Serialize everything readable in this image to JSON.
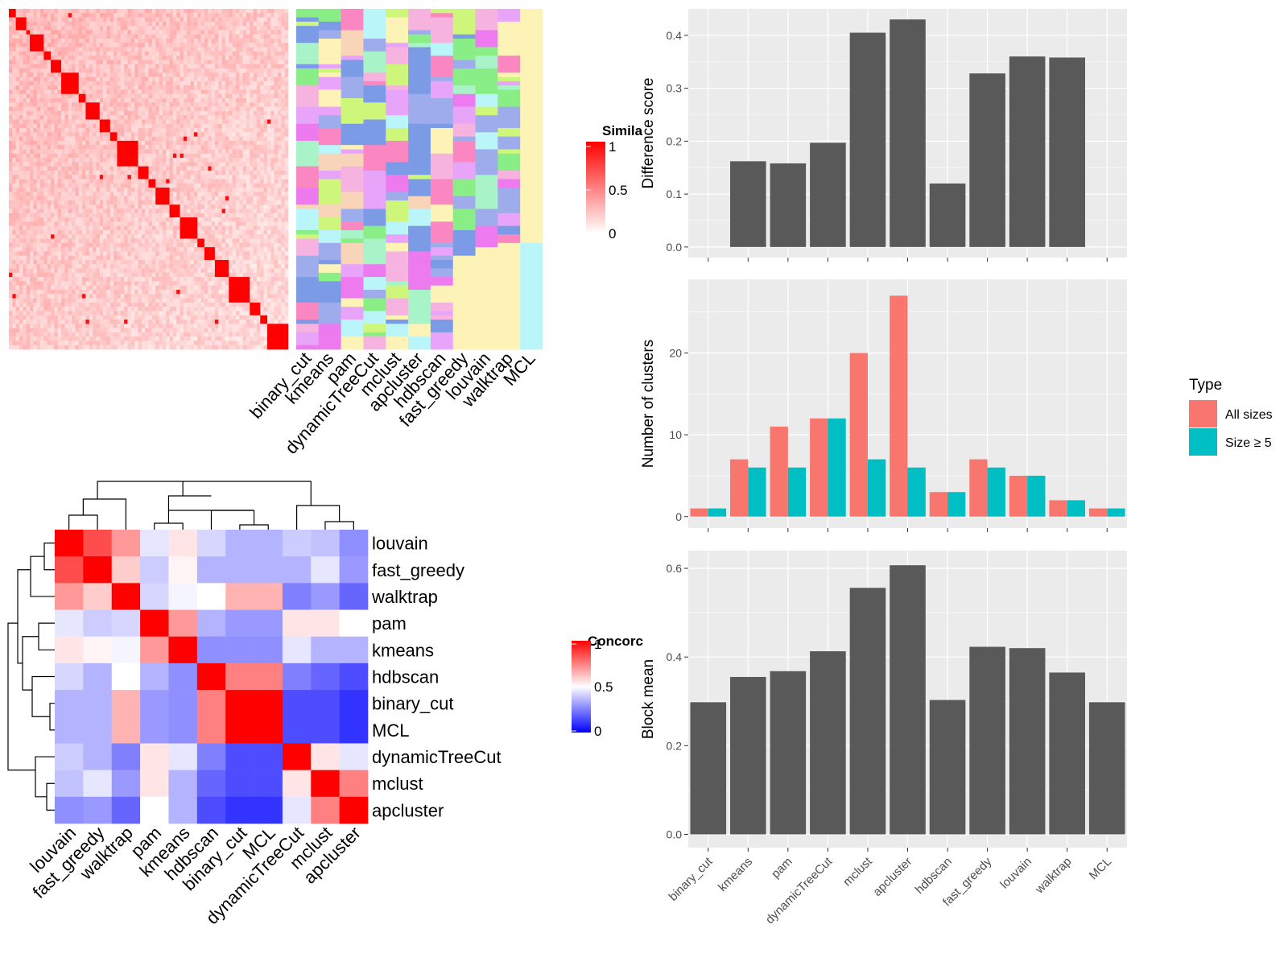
{
  "methods": [
    "binary_cut",
    "kmeans",
    "pam",
    "dynamicTreeCut",
    "mclust",
    "apcluster",
    "hdbscan",
    "fast_greedy",
    "louvain",
    "walktrap",
    "MCL"
  ],
  "colors": {
    "bar_fill": "#595959",
    "panel_bg": "#EBEBEB",
    "grid": "#FFFFFF",
    "all_sizes": "#F8766D",
    "size5": "#00BFC4",
    "sim_high": "#FF0000",
    "sim_low": "#FFFFFF",
    "conc_low": "#0000FF",
    "conc_mid": "#FFFFFF",
    "conc_high": "#FF0000",
    "pastel": [
      "#7B9BE6",
      "#B9F5F9",
      "#FDF3B7",
      "#F8D5B8",
      "#ED7AEE",
      "#FA87C1",
      "#88EE85",
      "#CEF67A",
      "#E8A4F8",
      "#A9F3C8",
      "#9EACEC",
      "#F6B3E0"
    ]
  },
  "similarity_heatmap": {
    "legend_title": "Simila",
    "legend_ticks": [
      "1",
      "0.5",
      "0"
    ]
  },
  "membership_columns": [
    "binary_cut",
    "kmeans",
    "pam",
    "dynamicTreeCut",
    "mclust",
    "apcluster",
    "hdbscan",
    "fast_greedy",
    "louvain",
    "walktrap",
    "MCL"
  ],
  "concordance_heatmap": {
    "legend_title": "Concorc",
    "legend_ticks": [
      "1",
      "0.5",
      "0"
    ],
    "row_labels": [
      "louvain",
      "fast_greedy",
      "walktrap",
      "pam",
      "kmeans",
      "hdbscan",
      "binary_cut",
      "MCL",
      "dynamicTreeCut",
      "mclust",
      "apcluster"
    ],
    "col_labels": [
      "louvain",
      "fast_greedy",
      "walktrap",
      "pam",
      "kmeans",
      "hdbscan",
      "binary_cut",
      "MCL",
      "dynamicTreeCut",
      "mclust",
      "apcluster"
    ],
    "values": [
      [
        1.0,
        0.85,
        0.7,
        0.45,
        0.55,
        0.42,
        0.35,
        0.35,
        0.4,
        0.38,
        0.28
      ],
      [
        0.85,
        1.0,
        0.6,
        0.4,
        0.52,
        0.35,
        0.35,
        0.35,
        0.35,
        0.45,
        0.3
      ],
      [
        0.7,
        0.6,
        1.0,
        0.42,
        0.48,
        0.5,
        0.65,
        0.65,
        0.25,
        0.3,
        0.2
      ],
      [
        0.45,
        0.4,
        0.42,
        1.0,
        0.7,
        0.35,
        0.3,
        0.3,
        0.55,
        0.55,
        0.5
      ],
      [
        0.55,
        0.52,
        0.48,
        0.7,
        1.0,
        0.28,
        0.28,
        0.28,
        0.45,
        0.35,
        0.35
      ],
      [
        0.42,
        0.35,
        0.5,
        0.35,
        0.28,
        1.0,
        0.75,
        0.75,
        0.25,
        0.2,
        0.15
      ],
      [
        0.35,
        0.35,
        0.65,
        0.3,
        0.28,
        0.75,
        1.0,
        1.0,
        0.15,
        0.15,
        0.1
      ],
      [
        0.35,
        0.35,
        0.65,
        0.3,
        0.28,
        0.75,
        1.0,
        1.0,
        0.15,
        0.15,
        0.1
      ],
      [
        0.4,
        0.35,
        0.25,
        0.55,
        0.45,
        0.25,
        0.15,
        0.15,
        1.0,
        0.55,
        0.45
      ],
      [
        0.38,
        0.45,
        0.3,
        0.55,
        0.35,
        0.2,
        0.15,
        0.15,
        0.55,
        1.0,
        0.75
      ],
      [
        0.28,
        0.3,
        0.2,
        0.5,
        0.35,
        0.15,
        0.1,
        0.1,
        0.45,
        0.75,
        1.0
      ]
    ]
  },
  "chart_data": [
    {
      "type": "bar",
      "categories": [
        "binary_cut",
        "kmeans",
        "pam",
        "dynamicTreeCut",
        "mclust",
        "apcluster",
        "hdbscan",
        "fast_greedy",
        "louvain",
        "walktrap",
        "MCL"
      ],
      "values": [
        0.0,
        0.162,
        0.158,
        0.197,
        0.405,
        0.43,
        0.12,
        0.328,
        0.36,
        0.358,
        0.0
      ],
      "ylabel": "Difference score",
      "ylim": [
        -0.02,
        0.45
      ],
      "yticks": [
        "0.0",
        "0.1",
        "0.2",
        "0.3",
        "0.4"
      ],
      "grid": true
    },
    {
      "type": "bar",
      "categories": [
        "binary_cut",
        "kmeans",
        "pam",
        "dynamicTreeCut",
        "mclust",
        "apcluster",
        "hdbscan",
        "fast_greedy",
        "louvain",
        "walktrap",
        "MCL"
      ],
      "series": [
        {
          "name": "All sizes",
          "values": [
            1,
            7,
            11,
            12,
            20,
            27,
            3,
            7,
            5,
            2,
            1
          ]
        },
        {
          "name": "Size ≥ 5",
          "values": [
            1,
            6,
            6,
            12,
            7,
            6,
            3,
            6,
            5,
            2,
            1
          ]
        }
      ],
      "ylabel": "Number of clusters",
      "ylim": [
        -1.4,
        29
      ],
      "yticks": [
        "0",
        "10",
        "20"
      ],
      "legend_title": "Type",
      "legend_position": "right",
      "grid": true
    },
    {
      "type": "bar",
      "categories": [
        "binary_cut",
        "kmeans",
        "pam",
        "dynamicTreeCut",
        "mclust",
        "apcluster",
        "hdbscan",
        "fast_greedy",
        "louvain",
        "walktrap",
        "MCL"
      ],
      "values": [
        0.298,
        0.355,
        0.368,
        0.413,
        0.556,
        0.607,
        0.303,
        0.423,
        0.42,
        0.365,
        0.298
      ],
      "ylabel": "Block mean",
      "ylim": [
        -0.03,
        0.64
      ],
      "yticks": [
        "0.0",
        "0.2",
        "0.4",
        "0.6"
      ],
      "grid": true
    }
  ]
}
